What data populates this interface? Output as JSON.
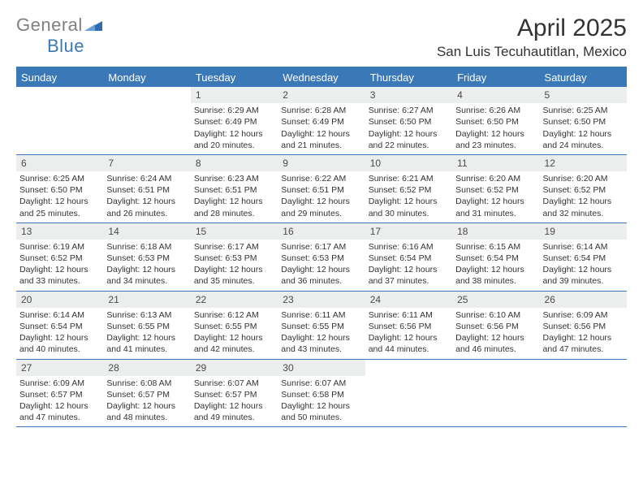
{
  "brand": {
    "part1": "General",
    "part2": "Blue"
  },
  "title": "April 2025",
  "location": "San Luis Tecuhautitlan, Mexico",
  "colors": {
    "accent": "#3b78b8",
    "header_bg": "#3b78b8",
    "daynum_bg": "#eceded",
    "text": "#333333"
  },
  "weekdays": [
    "Sunday",
    "Monday",
    "Tuesday",
    "Wednesday",
    "Thursday",
    "Friday",
    "Saturday"
  ],
  "labels": {
    "sunrise": "Sunrise:",
    "sunset": "Sunset:",
    "daylight": "Daylight:"
  },
  "weeks": [
    [
      {
        "n": "",
        "empty": true
      },
      {
        "n": "",
        "empty": true
      },
      {
        "n": "1",
        "sr": "6:29 AM",
        "ss": "6:49 PM",
        "dl": "12 hours and 20 minutes."
      },
      {
        "n": "2",
        "sr": "6:28 AM",
        "ss": "6:49 PM",
        "dl": "12 hours and 21 minutes."
      },
      {
        "n": "3",
        "sr": "6:27 AM",
        "ss": "6:50 PM",
        "dl": "12 hours and 22 minutes."
      },
      {
        "n": "4",
        "sr": "6:26 AM",
        "ss": "6:50 PM",
        "dl": "12 hours and 23 minutes."
      },
      {
        "n": "5",
        "sr": "6:25 AM",
        "ss": "6:50 PM",
        "dl": "12 hours and 24 minutes."
      }
    ],
    [
      {
        "n": "6",
        "sr": "6:25 AM",
        "ss": "6:50 PM",
        "dl": "12 hours and 25 minutes."
      },
      {
        "n": "7",
        "sr": "6:24 AM",
        "ss": "6:51 PM",
        "dl": "12 hours and 26 minutes."
      },
      {
        "n": "8",
        "sr": "6:23 AM",
        "ss": "6:51 PM",
        "dl": "12 hours and 28 minutes."
      },
      {
        "n": "9",
        "sr": "6:22 AM",
        "ss": "6:51 PM",
        "dl": "12 hours and 29 minutes."
      },
      {
        "n": "10",
        "sr": "6:21 AM",
        "ss": "6:52 PM",
        "dl": "12 hours and 30 minutes."
      },
      {
        "n": "11",
        "sr": "6:20 AM",
        "ss": "6:52 PM",
        "dl": "12 hours and 31 minutes."
      },
      {
        "n": "12",
        "sr": "6:20 AM",
        "ss": "6:52 PM",
        "dl": "12 hours and 32 minutes."
      }
    ],
    [
      {
        "n": "13",
        "sr": "6:19 AM",
        "ss": "6:52 PM",
        "dl": "12 hours and 33 minutes."
      },
      {
        "n": "14",
        "sr": "6:18 AM",
        "ss": "6:53 PM",
        "dl": "12 hours and 34 minutes."
      },
      {
        "n": "15",
        "sr": "6:17 AM",
        "ss": "6:53 PM",
        "dl": "12 hours and 35 minutes."
      },
      {
        "n": "16",
        "sr": "6:17 AM",
        "ss": "6:53 PM",
        "dl": "12 hours and 36 minutes."
      },
      {
        "n": "17",
        "sr": "6:16 AM",
        "ss": "6:54 PM",
        "dl": "12 hours and 37 minutes."
      },
      {
        "n": "18",
        "sr": "6:15 AM",
        "ss": "6:54 PM",
        "dl": "12 hours and 38 minutes."
      },
      {
        "n": "19",
        "sr": "6:14 AM",
        "ss": "6:54 PM",
        "dl": "12 hours and 39 minutes."
      }
    ],
    [
      {
        "n": "20",
        "sr": "6:14 AM",
        "ss": "6:54 PM",
        "dl": "12 hours and 40 minutes."
      },
      {
        "n": "21",
        "sr": "6:13 AM",
        "ss": "6:55 PM",
        "dl": "12 hours and 41 minutes."
      },
      {
        "n": "22",
        "sr": "6:12 AM",
        "ss": "6:55 PM",
        "dl": "12 hours and 42 minutes."
      },
      {
        "n": "23",
        "sr": "6:11 AM",
        "ss": "6:55 PM",
        "dl": "12 hours and 43 minutes."
      },
      {
        "n": "24",
        "sr": "6:11 AM",
        "ss": "6:56 PM",
        "dl": "12 hours and 44 minutes."
      },
      {
        "n": "25",
        "sr": "6:10 AM",
        "ss": "6:56 PM",
        "dl": "12 hours and 46 minutes."
      },
      {
        "n": "26",
        "sr": "6:09 AM",
        "ss": "6:56 PM",
        "dl": "12 hours and 47 minutes."
      }
    ],
    [
      {
        "n": "27",
        "sr": "6:09 AM",
        "ss": "6:57 PM",
        "dl": "12 hours and 47 minutes."
      },
      {
        "n": "28",
        "sr": "6:08 AM",
        "ss": "6:57 PM",
        "dl": "12 hours and 48 minutes."
      },
      {
        "n": "29",
        "sr": "6:07 AM",
        "ss": "6:57 PM",
        "dl": "12 hours and 49 minutes."
      },
      {
        "n": "30",
        "sr": "6:07 AM",
        "ss": "6:58 PM",
        "dl": "12 hours and 50 minutes."
      },
      {
        "n": "",
        "empty": true
      },
      {
        "n": "",
        "empty": true
      },
      {
        "n": "",
        "empty": true
      }
    ]
  ]
}
